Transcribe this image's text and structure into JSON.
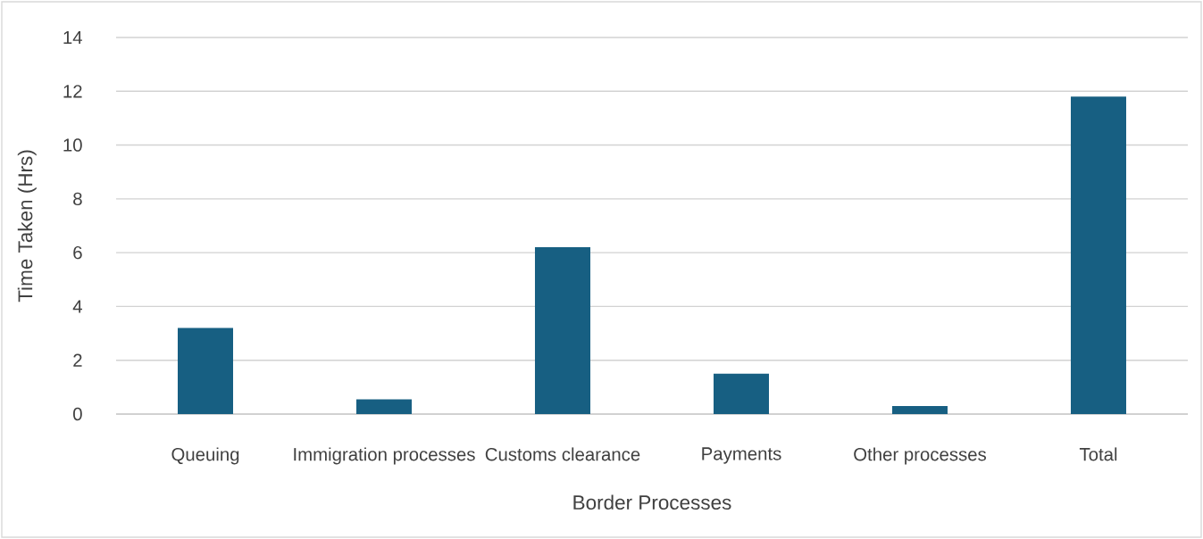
{
  "chart_data": {
    "type": "bar",
    "xlabel": "Border Processes",
    "ylabel": "Time Taken (Hrs)",
    "categories": [
      "Queuing",
      "Immigration processes",
      "Customs clearance",
      "Payments",
      "Other processes",
      "Total"
    ],
    "values": [
      3.2,
      0.55,
      6.2,
      1.5,
      0.3,
      11.8
    ],
    "color": "#175f82",
    "ylim": [
      0,
      14
    ],
    "yticks": [
      0,
      2,
      4,
      6,
      8,
      10,
      12,
      14
    ],
    "grid": "y"
  }
}
